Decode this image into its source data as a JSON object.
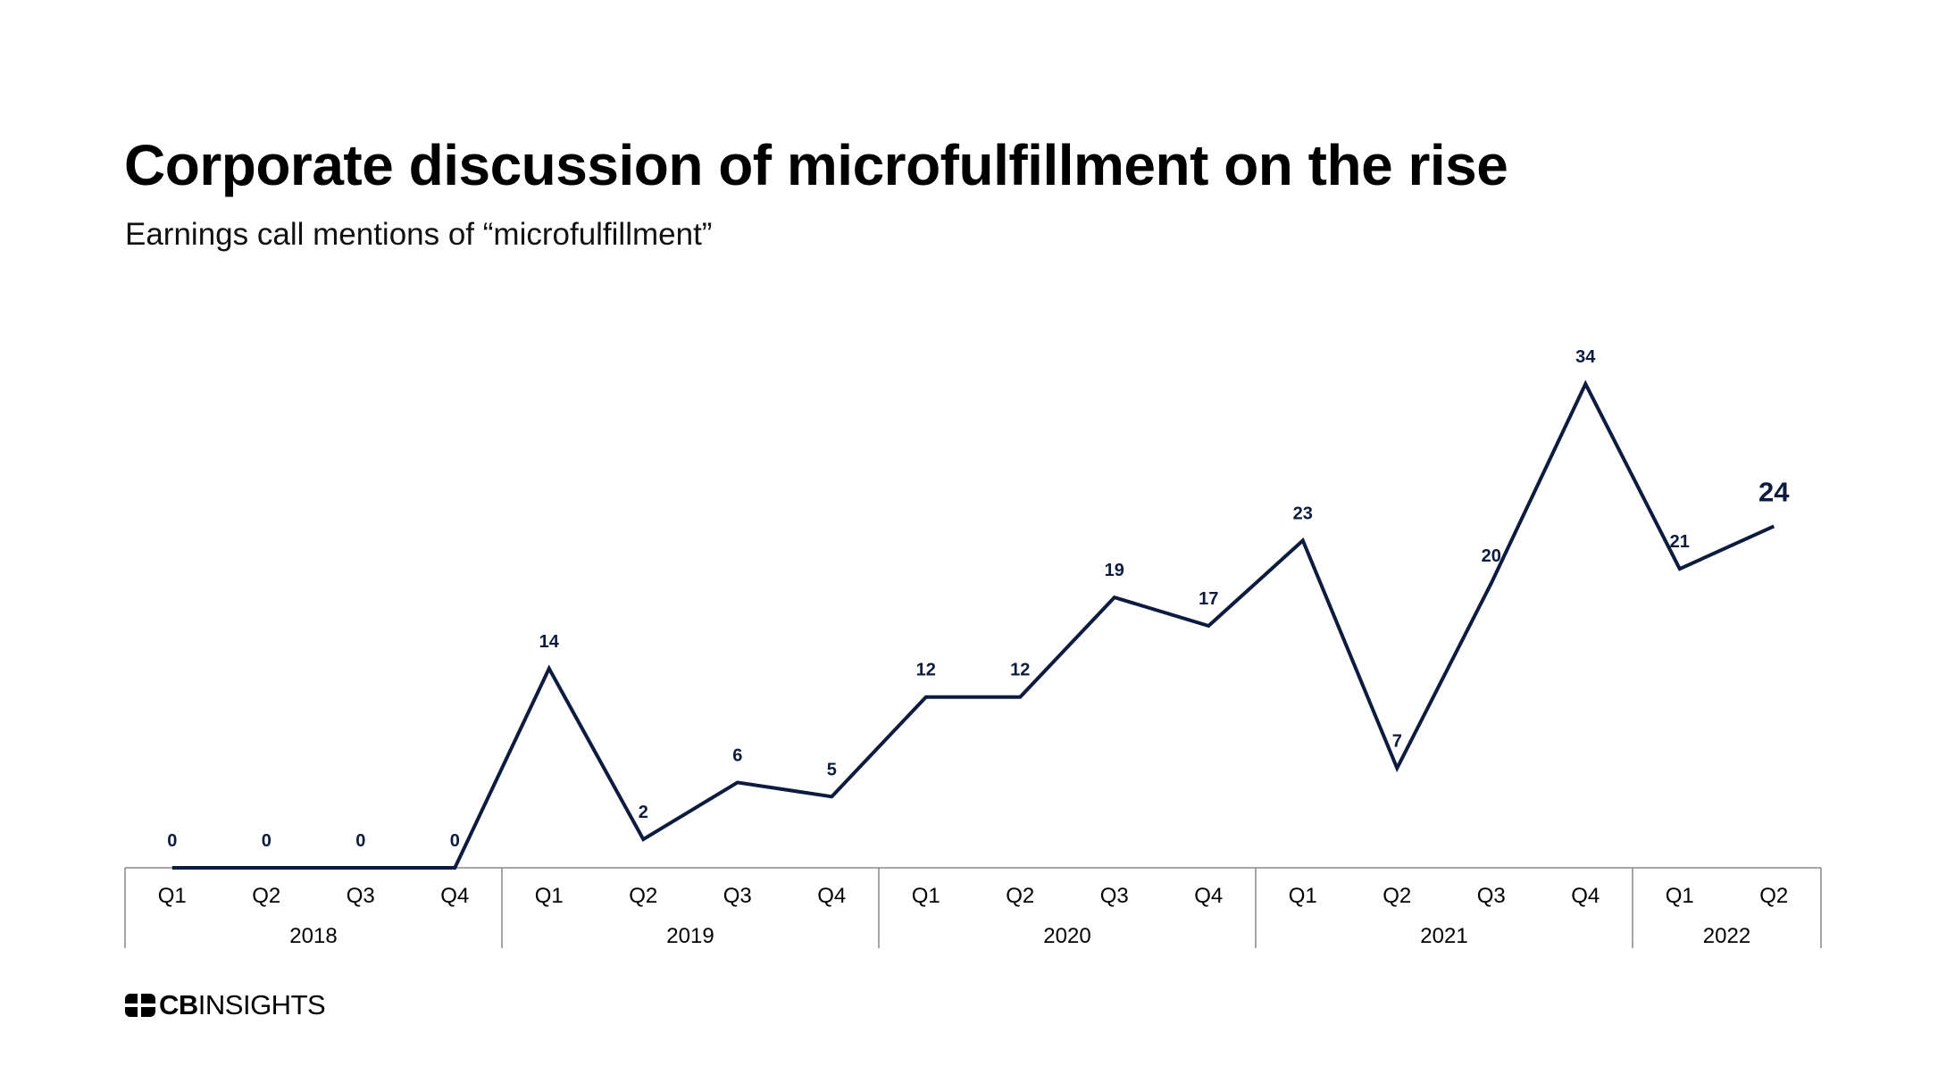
{
  "title": "Corporate discussion of microfulfillment on the rise",
  "subtitle": "Earnings call mentions of “microfulfillment”",
  "logo": {
    "bold": "CB",
    "light": "INSIGHTS"
  },
  "colors": {
    "line": "#0d1b3e",
    "label": "#0d1b3e",
    "axis": "#888888",
    "tick_text": "#000000"
  },
  "chart_data": {
    "type": "line",
    "title": "Corporate discussion of microfulfillment on the rise",
    "subtitle": "Earnings call mentions of “microfulfillment”",
    "xlabel": "",
    "ylabel": "",
    "ylim": [
      0,
      34
    ],
    "grid": false,
    "legend": "none",
    "categories": [
      "Q1",
      "Q2",
      "Q3",
      "Q4",
      "Q1",
      "Q2",
      "Q3",
      "Q4",
      "Q1",
      "Q2",
      "Q3",
      "Q4",
      "Q1",
      "Q2",
      "Q3",
      "Q4",
      "Q1",
      "Q2"
    ],
    "groups": [
      {
        "label": "2018",
        "count": 4
      },
      {
        "label": "2019",
        "count": 4
      },
      {
        "label": "2020",
        "count": 4
      },
      {
        "label": "2021",
        "count": 4
      },
      {
        "label": "2022",
        "count": 2
      }
    ],
    "series": [
      {
        "values": [
          0,
          0,
          0,
          0,
          14,
          2,
          6,
          5,
          12,
          12,
          19,
          17,
          23,
          7,
          20,
          34,
          21,
          24
        ]
      }
    ],
    "highlight_last": true
  }
}
